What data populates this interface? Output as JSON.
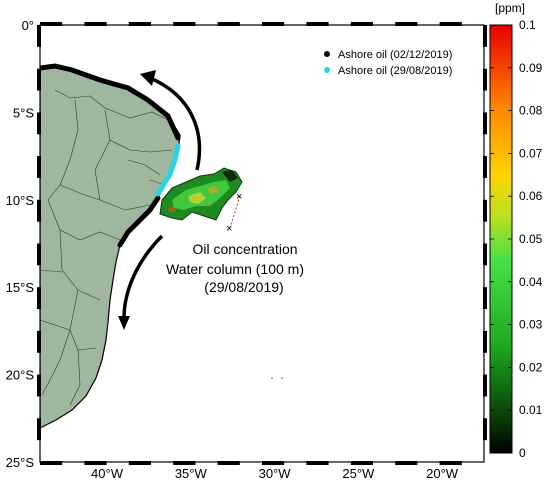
{
  "map": {
    "lat_labels": [
      "0°",
      "5°S",
      "10°S",
      "15°S",
      "20°S",
      "25°S"
    ],
    "lon_labels": [
      "40°W",
      "35°W",
      "30°W",
      "25°W",
      "20°W"
    ],
    "lon_range": [
      -44,
      -17.5
    ],
    "lat_range": [
      -25,
      0
    ],
    "annotation": [
      "Oil concentration",
      "Water column (100 m)",
      "(29/08/2019)"
    ],
    "legend": [
      {
        "label": "Ashore oil (02/12/2019)",
        "color": "#000000"
      },
      {
        "label": "Ashore oil (29/08/2019)",
        "color": "#29d3e6"
      }
    ],
    "colors": {
      "land": "#9fb69f",
      "ashore_recent": "#29d3e6",
      "ashore_old": "#000000"
    }
  },
  "colorbar": {
    "unit": "[ppm]",
    "min": 0,
    "max": 0.1,
    "ticks": [
      "0",
      "0.01",
      "0.02",
      "0.03",
      "0.04",
      "0.05",
      "0.06",
      "0.07",
      "0.08",
      "0.09",
      "0.1"
    ]
  }
}
